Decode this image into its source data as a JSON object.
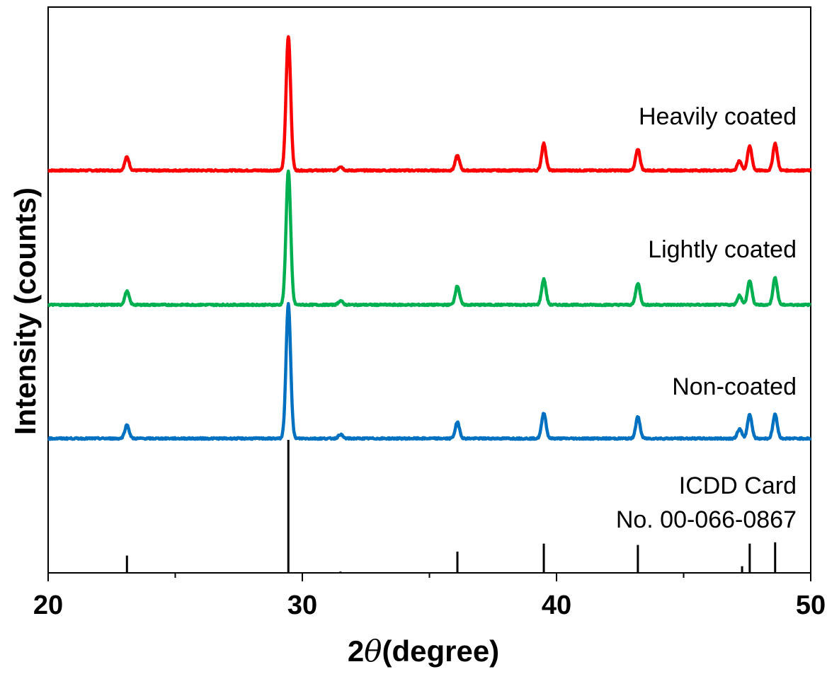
{
  "chart_data": {
    "type": "line",
    "title": "",
    "xlabel_prefix": "2",
    "xlabel_symbol": "θ",
    "xlabel_suffix": "(degree)",
    "ylabel": "Intensity (counts)",
    "xlim": [
      20,
      50
    ],
    "x_ticks": [
      "20",
      "30",
      "40",
      "50"
    ],
    "x_minor_ticks": [
      25,
      35,
      45
    ],
    "y_ticks_shown": false,
    "grid": false,
    "legend": "none",
    "series": [
      {
        "name": "Heavily coated",
        "color": "#ff0000",
        "baseline": 1.0,
        "peaks": [
          {
            "x": 23.1,
            "y": 0.1
          },
          {
            "x": 29.45,
            "y": 1.0
          },
          {
            "x": 31.5,
            "y": 0.03
          },
          {
            "x": 36.1,
            "y": 0.11
          },
          {
            "x": 39.5,
            "y": 0.2
          },
          {
            "x": 43.2,
            "y": 0.16
          },
          {
            "x": 47.2,
            "y": 0.07
          },
          {
            "x": 47.6,
            "y": 0.18
          },
          {
            "x": 48.6,
            "y": 0.2
          }
        ]
      },
      {
        "name": "Lightly coated",
        "color": "#00b050",
        "baseline": 1.0,
        "peaks": [
          {
            "x": 23.1,
            "y": 0.1
          },
          {
            "x": 29.45,
            "y": 1.0
          },
          {
            "x": 31.5,
            "y": 0.03
          },
          {
            "x": 36.1,
            "y": 0.14
          },
          {
            "x": 39.5,
            "y": 0.19
          },
          {
            "x": 43.2,
            "y": 0.16
          },
          {
            "x": 47.2,
            "y": 0.07
          },
          {
            "x": 47.6,
            "y": 0.18
          },
          {
            "x": 48.6,
            "y": 0.2
          }
        ]
      },
      {
        "name": "Non-coated",
        "color": "#0070c0",
        "baseline": 1.0,
        "peaks": [
          {
            "x": 23.1,
            "y": 0.1
          },
          {
            "x": 29.45,
            "y": 1.0
          },
          {
            "x": 31.5,
            "y": 0.03
          },
          {
            "x": 36.1,
            "y": 0.12
          },
          {
            "x": 39.5,
            "y": 0.19
          },
          {
            "x": 43.2,
            "y": 0.16
          },
          {
            "x": 47.2,
            "y": 0.07
          },
          {
            "x": 47.6,
            "y": 0.18
          },
          {
            "x": 48.6,
            "y": 0.18
          }
        ]
      }
    ],
    "reference": {
      "label_line1": "ICDD Card",
      "label_line2": "No. 00-066-0867",
      "color": "#000000",
      "lines": [
        {
          "x": 23.1,
          "y": 0.13
        },
        {
          "x": 29.45,
          "y": 1.0
        },
        {
          "x": 31.5,
          "y": 0.01
        },
        {
          "x": 36.1,
          "y": 0.16
        },
        {
          "x": 39.5,
          "y": 0.22
        },
        {
          "x": 43.2,
          "y": 0.21
        },
        {
          "x": 47.3,
          "y": 0.05
        },
        {
          "x": 47.6,
          "y": 0.22
        },
        {
          "x": 48.6,
          "y": 0.23
        }
      ]
    }
  }
}
